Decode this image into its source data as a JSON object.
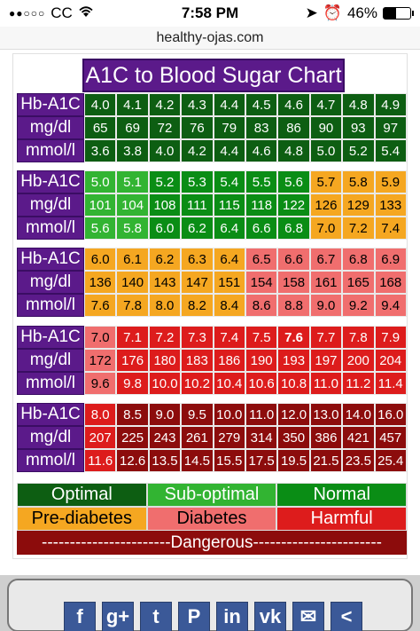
{
  "status": {
    "carrier": "CC",
    "time": "7:58 PM",
    "battery": "46%",
    "battery_fraction": 0.46
  },
  "urlbar": {
    "url": "healthy-ojas.com"
  },
  "chart": {
    "title": "A1C to Blood Sugar Chart",
    "labels": {
      "a1c": "Hb-A1C",
      "mgdl": "mg/dl",
      "mmol": "mmol/l"
    },
    "blocks": [
      {
        "a1c": [
          "4.0",
          "4.1",
          "4.2",
          "4.3",
          "4.4",
          "4.5",
          "4.6",
          "4.7",
          "4.8",
          "4.9"
        ],
        "mgdl": [
          "65",
          "69",
          "72",
          "76",
          "79",
          "83",
          "86",
          "90",
          "93",
          "97"
        ],
        "mmol": [
          "3.6",
          "3.8",
          "4.0",
          "4.2",
          "4.4",
          "4.6",
          "4.8",
          "5.0",
          "5.2",
          "5.4"
        ],
        "colors": [
          "optimal",
          "optimal",
          "optimal",
          "optimal",
          "optimal",
          "optimal",
          "optimal",
          "optimal",
          "optimal",
          "optimal"
        ]
      },
      {
        "a1c": [
          "5.0",
          "5.1",
          "5.2",
          "5.3",
          "5.4",
          "5.5",
          "5.6",
          "5.7",
          "5.8",
          "5.9"
        ],
        "mgdl": [
          "101",
          "104",
          "108",
          "111",
          "115",
          "118",
          "122",
          "126",
          "129",
          "133"
        ],
        "mmol": [
          "5.6",
          "5.8",
          "6.0",
          "6.2",
          "6.4",
          "6.6",
          "6.8",
          "7.0",
          "7.2",
          "7.4"
        ],
        "colors": [
          "suboptimal",
          "suboptimal",
          "normal",
          "normal",
          "normal",
          "normal",
          "normal",
          "prediabetes",
          "prediabetes",
          "prediabetes"
        ]
      },
      {
        "a1c": [
          "6.0",
          "6.1",
          "6.2",
          "6.3",
          "6.4",
          "6.5",
          "6.6",
          "6.7",
          "6.8",
          "6.9"
        ],
        "mgdl": [
          "136",
          "140",
          "143",
          "147",
          "151",
          "154",
          "158",
          "161",
          "165",
          "168"
        ],
        "mmol": [
          "7.6",
          "7.8",
          "8.0",
          "8.2",
          "8.4",
          "8.6",
          "8.8",
          "9.0",
          "9.2",
          "9.4"
        ],
        "colors": [
          "prediabetes",
          "prediabetes",
          "prediabetes",
          "prediabetes",
          "prediabetes",
          "diabetes",
          "diabetes",
          "diabetes",
          "diabetes",
          "diabetes"
        ]
      },
      {
        "a1c": [
          "7.0",
          "7.1",
          "7.2",
          "7.3",
          "7.4",
          "7.5",
          "7.6",
          "7.7",
          "7.8",
          "7.9"
        ],
        "mgdl": [
          "172",
          "176",
          "180",
          "183",
          "186",
          "190",
          "193",
          "197",
          "200",
          "204"
        ],
        "mmol": [
          "9.6",
          "9.8",
          "10.0",
          "10.2",
          "10.4",
          "10.6",
          "10.8",
          "11.0",
          "11.2",
          "11.4"
        ],
        "colors": [
          "diabetes",
          "harmful",
          "harmful",
          "harmful",
          "harmful",
          "harmful",
          "harmful",
          "harmful",
          "harmful",
          "harmful"
        ]
      },
      {
        "a1c": [
          "8.0",
          "8.5",
          "9.0",
          "9.5",
          "10.0",
          "11.0",
          "12.0",
          "13.0",
          "14.0",
          "16.0"
        ],
        "mgdl": [
          "207",
          "225",
          "243",
          "261",
          "279",
          "314",
          "350",
          "386",
          "421",
          "457"
        ],
        "mmol": [
          "11.6",
          "12.6",
          "13.5",
          "14.5",
          "15.5",
          "17.5",
          "19.5",
          "21.5",
          "23.5",
          "25.4"
        ],
        "colors": [
          "harmful",
          "dangerous",
          "dangerous",
          "dangerous",
          "dangerous",
          "dangerous",
          "dangerous",
          "dangerous",
          "dangerous",
          "dangerous"
        ]
      }
    ],
    "legend": {
      "row1": [
        {
          "label": "Optimal",
          "color": "optimal"
        },
        {
          "label": "Sub-optimal",
          "color": "suboptimal"
        },
        {
          "label": "Normal",
          "color": "normal"
        }
      ],
      "row2": [
        {
          "label": "Pre-diabetes",
          "color": "prediabetes"
        },
        {
          "label": "Diabetes",
          "color": "diabetes"
        },
        {
          "label": "Harmful",
          "color": "harmful"
        }
      ],
      "dangerous": "-----------------------Dangerous-----------------------"
    }
  },
  "share": {
    "icons": [
      "facebook-icon",
      "google-plus-icon",
      "twitter-icon",
      "pinterest-icon",
      "linkedin-icon",
      "vk-icon",
      "email-icon",
      "share-icon"
    ],
    "glyphs": [
      "f",
      "g+",
      "t",
      "P",
      "in",
      "vk",
      "✉",
      "<"
    ]
  }
}
